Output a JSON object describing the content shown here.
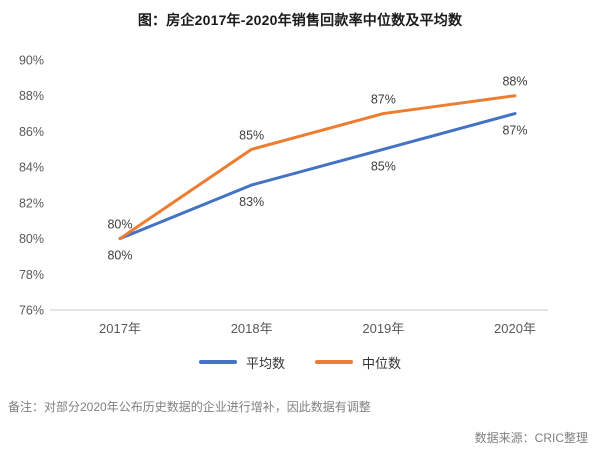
{
  "page": {
    "title": "图：房企2017年-2020年销售回款率中位数及平均数",
    "note": "备注：对部分2020年公布历史数据的企业进行增补，因此数据有调整",
    "source": "数据来源：CRIC整理"
  },
  "chart_data": {
    "type": "line",
    "title": "图：房企2017年-2020年销售回款率中位数及平均数",
    "categories": [
      "2017年",
      "2018年",
      "2019年",
      "2020年"
    ],
    "series": [
      {
        "key": "average",
        "name": "平均数",
        "color": "#4472C4",
        "values": [
          80,
          83,
          85,
          87
        ],
        "label_position": "below"
      },
      {
        "key": "median",
        "name": "中位数",
        "color": "#ED7D31",
        "values": [
          80,
          85,
          87,
          88
        ],
        "label_position": "above"
      }
    ],
    "ylim": [
      76,
      90
    ],
    "ytick_step": 2,
    "ytick_suffix": "%",
    "xlabel": "",
    "ylabel": "",
    "grid": false,
    "legend_position": "bottom",
    "data_labels": true
  }
}
